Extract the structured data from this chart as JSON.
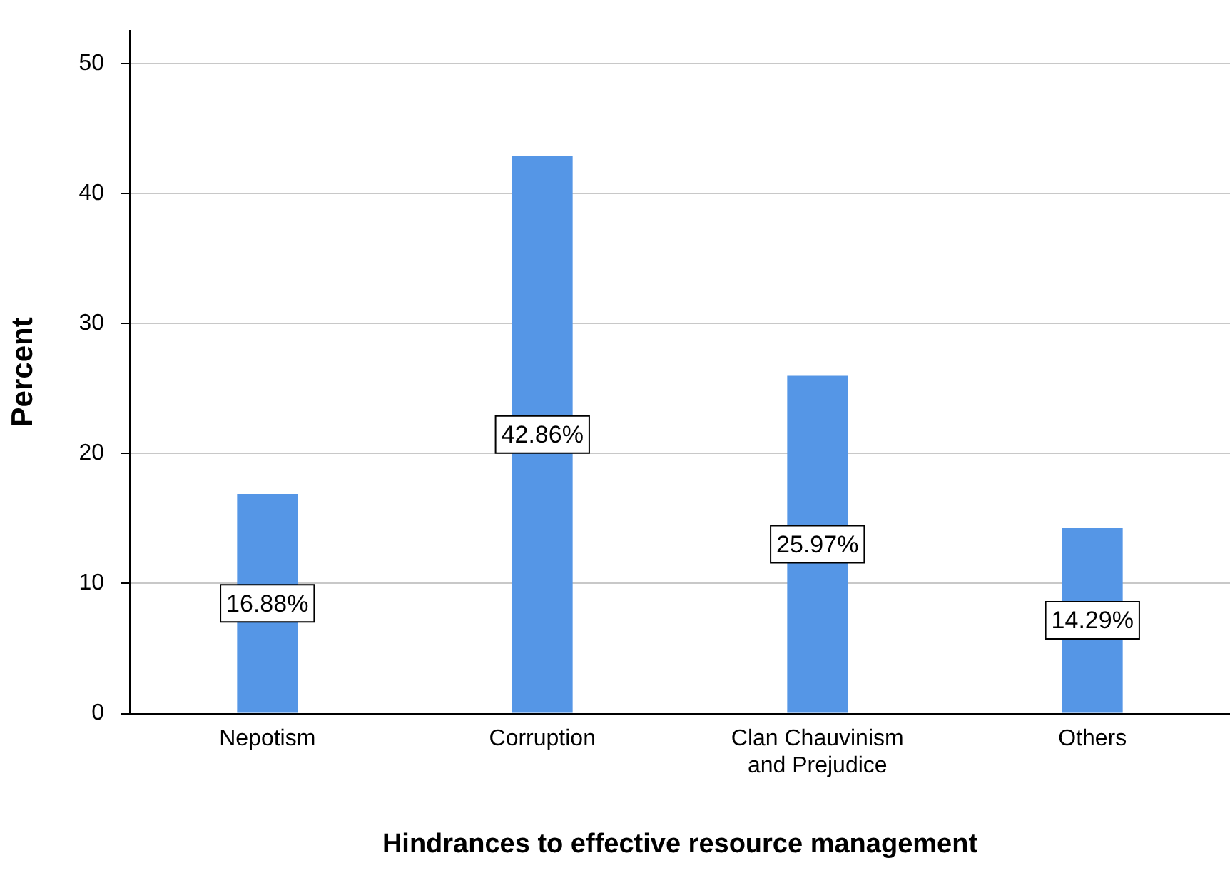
{
  "chart_data": {
    "type": "bar",
    "xlabel": "Hindrances to effective resource management",
    "ylabel": "Percent",
    "categories": [
      "Nepotism",
      "Corruption",
      "Clan Chauvinism and Prejudice",
      "Others"
    ],
    "values": [
      16.88,
      42.86,
      25.97,
      14.29
    ],
    "value_labels": [
      "16.88%",
      "42.86%",
      "25.97%",
      "14.29%"
    ],
    "color": "#5596e6",
    "ylim": [
      0,
      52.5
    ],
    "yticks": [
      0,
      10,
      20,
      30,
      40,
      50
    ],
    "grid": "y",
    "legend": false
  }
}
